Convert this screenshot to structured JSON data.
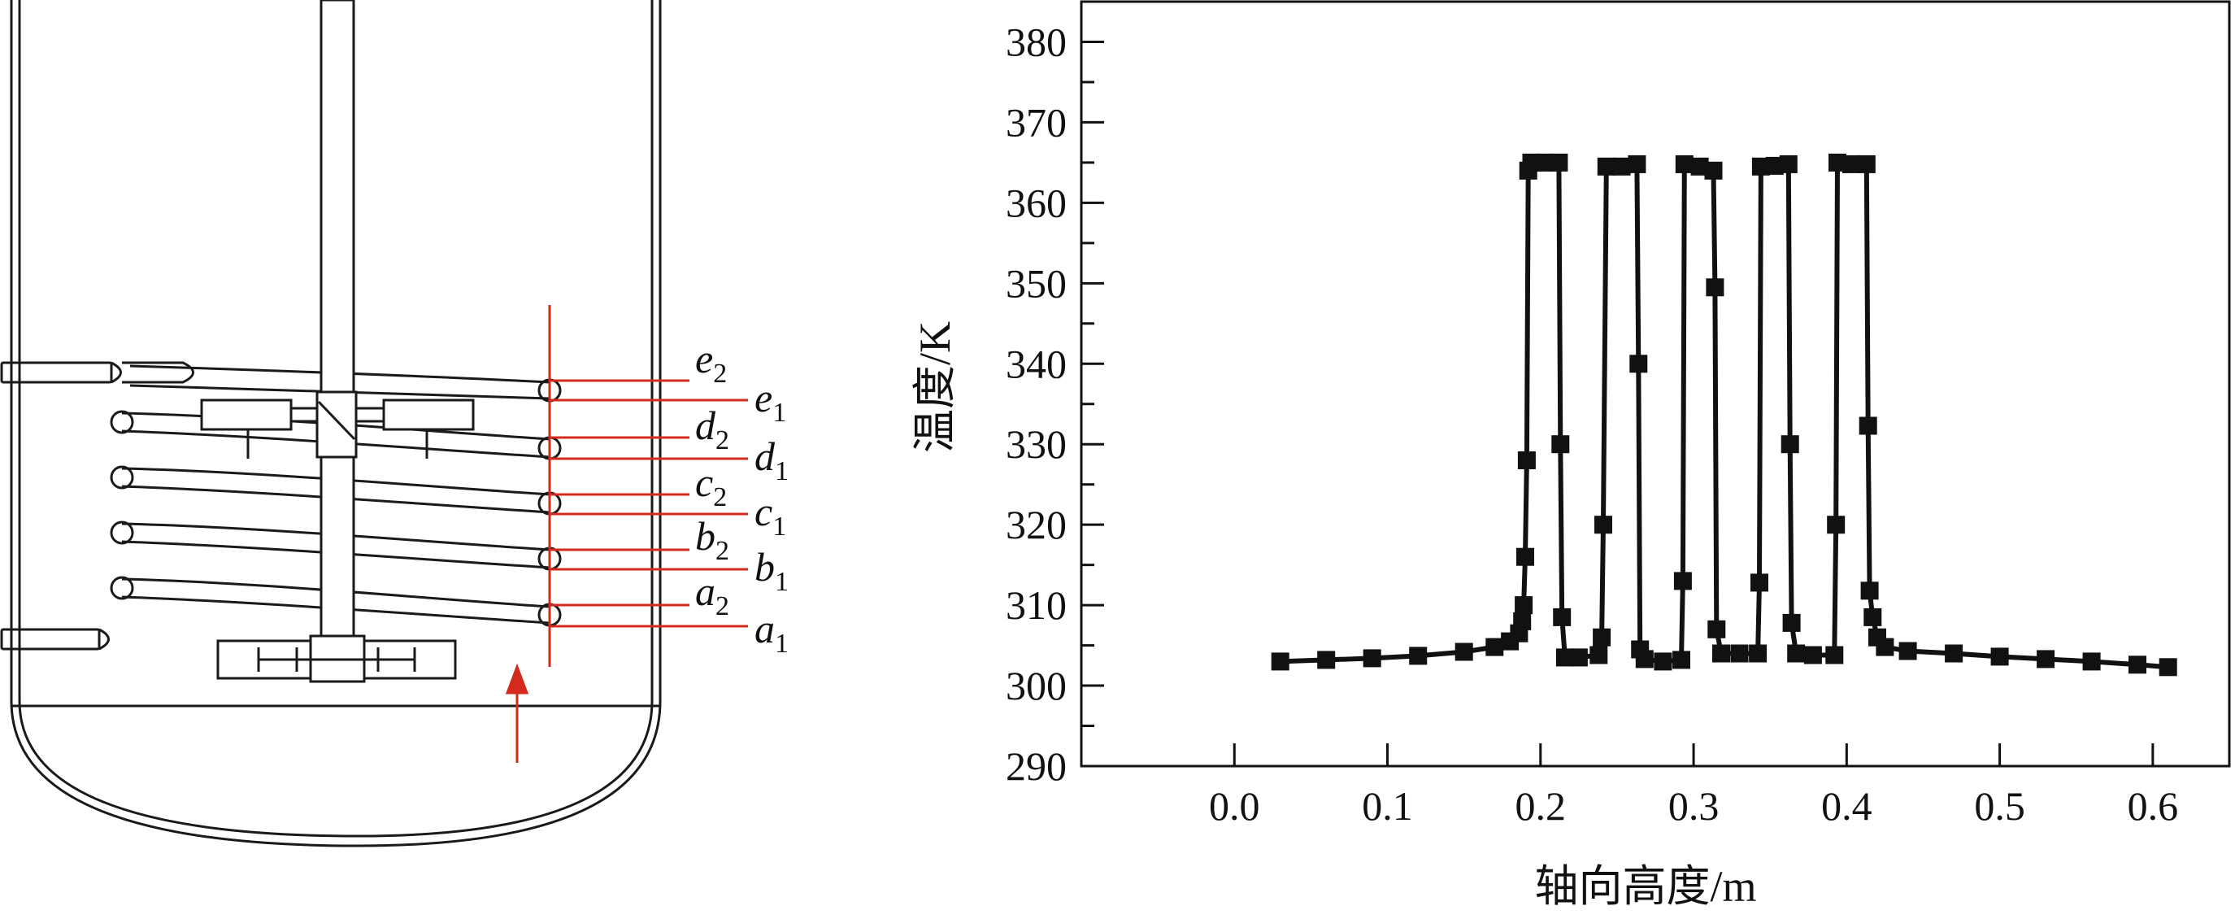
{
  "colors": {
    "ink": "#1a1a1a",
    "marker": "#111111",
    "probe": "#d42a1e"
  },
  "diagram": {
    "labels": [
      {
        "letter": "e",
        "sub": "2"
      },
      {
        "letter": "e",
        "sub": "1"
      },
      {
        "letter": "d",
        "sub": "2"
      },
      {
        "letter": "d",
        "sub": "1"
      },
      {
        "letter": "c",
        "sub": "2"
      },
      {
        "letter": "c",
        "sub": "1"
      },
      {
        "letter": "b",
        "sub": "2"
      },
      {
        "letter": "b",
        "sub": "1"
      },
      {
        "letter": "a",
        "sub": "2"
      },
      {
        "letter": "a",
        "sub": "1"
      }
    ]
  },
  "chart_data": {
    "type": "line",
    "xlabel": "轴向高度/m",
    "ylabel": "温度/K",
    "xlim": [
      -0.1,
      0.65
    ],
    "ylim": [
      290,
      385
    ],
    "xticks": [
      "0.0",
      "0.1",
      "0.2",
      "0.3",
      "0.4",
      "0.5",
      "0.6"
    ],
    "yticks": [
      "290",
      "300",
      "310",
      "320",
      "330",
      "340",
      "350",
      "360",
      "370",
      "380"
    ],
    "grid": false,
    "series": [
      {
        "marker": "square",
        "points": [
          [
            0.03,
            303.0
          ],
          [
            0.06,
            303.2
          ],
          [
            0.09,
            303.4
          ],
          [
            0.12,
            303.7
          ],
          [
            0.15,
            304.2
          ],
          [
            0.17,
            304.8
          ],
          [
            0.18,
            305.5
          ],
          [
            0.186,
            306.5
          ],
          [
            0.188,
            308.0
          ],
          [
            0.189,
            310.0
          ],
          [
            0.19,
            316.0
          ],
          [
            0.191,
            328.0
          ],
          [
            0.192,
            364.0
          ],
          [
            0.194,
            365.0
          ],
          [
            0.203,
            365.0
          ],
          [
            0.212,
            365.0
          ],
          [
            0.213,
            330.0
          ],
          [
            0.214,
            308.5
          ],
          [
            0.216,
            303.5
          ],
          [
            0.225,
            303.5
          ],
          [
            0.238,
            303.8
          ],
          [
            0.24,
            306.0
          ],
          [
            0.241,
            320.0
          ],
          [
            0.243,
            364.5
          ],
          [
            0.253,
            364.5
          ],
          [
            0.263,
            364.8
          ],
          [
            0.264,
            340.0
          ],
          [
            0.265,
            304.5
          ],
          [
            0.268,
            303.3
          ],
          [
            0.28,
            303.0
          ],
          [
            0.292,
            303.2
          ],
          [
            0.293,
            313.0
          ],
          [
            0.294,
            364.8
          ],
          [
            0.304,
            364.5
          ],
          [
            0.313,
            364.0
          ],
          [
            0.314,
            349.5
          ],
          [
            0.315,
            307.0
          ],
          [
            0.318,
            304.0
          ],
          [
            0.33,
            304.0
          ],
          [
            0.342,
            304.0
          ],
          [
            0.343,
            312.8
          ],
          [
            0.344,
            364.5
          ],
          [
            0.353,
            364.6
          ],
          [
            0.362,
            364.8
          ],
          [
            0.363,
            330.0
          ],
          [
            0.364,
            307.8
          ],
          [
            0.367,
            304.0
          ],
          [
            0.378,
            303.8
          ],
          [
            0.392,
            303.8
          ],
          [
            0.393,
            320.0
          ],
          [
            0.394,
            365.0
          ],
          [
            0.403,
            364.8
          ],
          [
            0.413,
            364.8
          ],
          [
            0.414,
            332.3
          ],
          [
            0.415,
            311.8
          ],
          [
            0.417,
            308.5
          ],
          [
            0.42,
            306.0
          ],
          [
            0.425,
            304.8
          ],
          [
            0.44,
            304.3
          ],
          [
            0.47,
            304.0
          ],
          [
            0.5,
            303.6
          ],
          [
            0.53,
            303.3
          ],
          [
            0.56,
            303.0
          ],
          [
            0.59,
            302.6
          ],
          [
            0.61,
            302.3
          ]
        ]
      }
    ]
  }
}
